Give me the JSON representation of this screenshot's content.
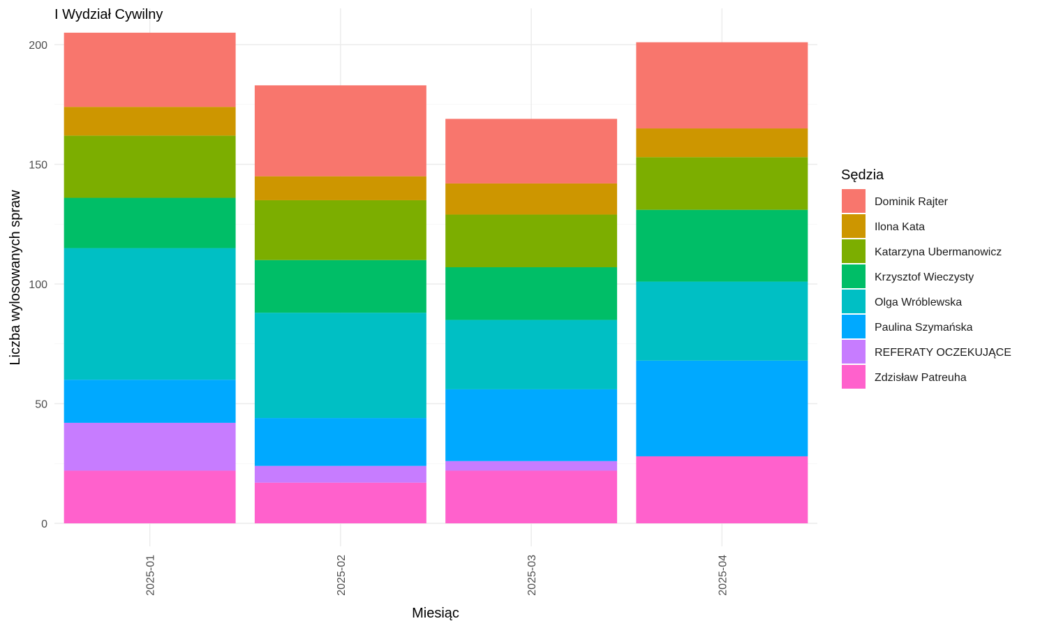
{
  "chart_data": {
    "type": "bar",
    "stacked": true,
    "title": "I Wydział Cywilny",
    "xlabel": "Miesiąc",
    "ylabel": "Liczba wylosowanych spraw",
    "ylim": [
      0,
      205
    ],
    "yticks": [
      0,
      50,
      100,
      150,
      200
    ],
    "grid": true,
    "legend_title": "Sędzia",
    "legend_position": "right",
    "categories": [
      "2025-01",
      "2025-02",
      "2025-03",
      "2025-04"
    ],
    "series": [
      {
        "name": "Zdzisław Patreuha",
        "color": "#FF61CC",
        "values": [
          22,
          17,
          22,
          28
        ]
      },
      {
        "name": "REFERATY OCZEKUJĄCE",
        "color": "#C77CFF",
        "values": [
          20,
          7,
          4,
          0
        ]
      },
      {
        "name": "Paulina Szymańska",
        "color": "#00A9FF",
        "values": [
          18,
          20,
          30,
          40
        ]
      },
      {
        "name": "Olga Wróblewska",
        "color": "#00BFC4",
        "values": [
          55,
          44,
          29,
          33
        ]
      },
      {
        "name": "Krzysztof Wieczysty",
        "color": "#00BE67",
        "values": [
          21,
          22,
          22,
          30
        ]
      },
      {
        "name": "Katarzyna Ubermanowicz",
        "color": "#7CAE00",
        "values": [
          26,
          25,
          22,
          22
        ]
      },
      {
        "name": "Ilona Kata",
        "color": "#CD9600",
        "values": [
          12,
          10,
          13,
          12
        ]
      },
      {
        "name": "Dominik Rajter",
        "color": "#F8766D",
        "values": [
          31,
          38,
          27,
          36
        ]
      }
    ],
    "legend_order": [
      "Dominik Rajter",
      "Ilona Kata",
      "Katarzyna Ubermanowicz",
      "Krzysztof Wieczysty",
      "Olga Wróblewska",
      "Paulina Szymańska",
      "REFERATY OCZEKUJĄCE",
      "Zdzisław Patreuha"
    ]
  }
}
